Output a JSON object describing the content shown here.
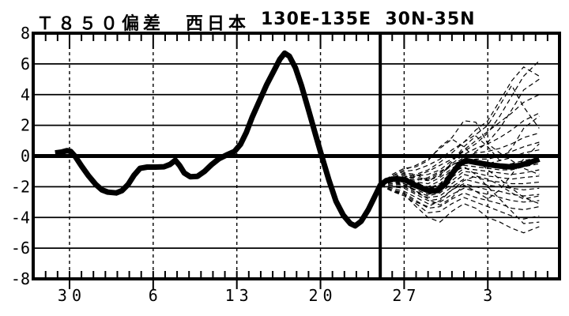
{
  "header": {
    "title_left": "Ｔ８５０偏差　西日本",
    "title_right": "130E-135E  30N-35N"
  },
  "chart_data": {
    "type": "line",
    "title": "Ｔ８５０偏差　西日本　130E-135E 30N-35N",
    "variable": "T850 anomaly (偏差)",
    "region": "西日本",
    "lon_band": "130E-135E",
    "lat_band": "30N-35N",
    "ylim": [
      -8,
      8
    ],
    "y_tick_values": [
      8,
      6,
      4,
      2,
      0,
      -2,
      -4,
      -6,
      -8
    ],
    "y_tick_labels": [
      "8",
      "6",
      "4",
      "2",
      "0",
      "-2",
      "-4",
      "-6",
      "-8"
    ],
    "x_tick_labels": [
      "30",
      "6",
      "13",
      "20",
      "27",
      "3"
    ],
    "x_tick_days": [
      0,
      7,
      14,
      21,
      28,
      35
    ],
    "day_range": [
      -3.04,
      41
    ],
    "forecast_start_day": 26,
    "grid": true,
    "legend": "none",
    "colors": {
      "fg": "#000000",
      "bg": "#ffffff"
    },
    "mean_series": {
      "name": "analysis-and-ensemble-mean",
      "points": [
        [
          -1.2,
          0.2
        ],
        [
          -0.7,
          0.25
        ],
        [
          -0.2,
          0.35
        ],
        [
          0.1,
          0.3
        ],
        [
          0.5,
          -0.05
        ],
        [
          1.0,
          -0.65
        ],
        [
          1.6,
          -1.3
        ],
        [
          2.2,
          -1.85
        ],
        [
          2.7,
          -2.2
        ],
        [
          3.2,
          -2.35
        ],
        [
          3.9,
          -2.4
        ],
        [
          4.4,
          -2.25
        ],
        [
          4.9,
          -1.85
        ],
        [
          5.4,
          -1.25
        ],
        [
          5.9,
          -0.8
        ],
        [
          6.5,
          -0.72
        ],
        [
          7.2,
          -0.72
        ],
        [
          7.9,
          -0.7
        ],
        [
          8.4,
          -0.55
        ],
        [
          8.85,
          -0.28
        ],
        [
          9.2,
          -0.6
        ],
        [
          9.6,
          -1.1
        ],
        [
          10.1,
          -1.35
        ],
        [
          10.7,
          -1.32
        ],
        [
          11.3,
          -1.0
        ],
        [
          11.9,
          -0.55
        ],
        [
          12.5,
          -0.18
        ],
        [
          13.1,
          0.05
        ],
        [
          13.8,
          0.3
        ],
        [
          14.3,
          0.75
        ],
        [
          14.8,
          1.55
        ],
        [
          15.3,
          2.55
        ],
        [
          15.9,
          3.6
        ],
        [
          16.5,
          4.65
        ],
        [
          17.1,
          5.55
        ],
        [
          17.6,
          6.3
        ],
        [
          18.0,
          6.7
        ],
        [
          18.4,
          6.5
        ],
        [
          18.9,
          5.75
        ],
        [
          19.4,
          4.6
        ],
        [
          20.0,
          3.0
        ],
        [
          20.6,
          1.35
        ],
        [
          21.1,
          0.0
        ],
        [
          21.7,
          -1.55
        ],
        [
          22.3,
          -2.95
        ],
        [
          22.9,
          -3.85
        ],
        [
          23.5,
          -4.4
        ],
        [
          23.9,
          -4.55
        ],
        [
          24.4,
          -4.25
        ],
        [
          25.0,
          -3.5
        ],
        [
          25.5,
          -2.7
        ],
        [
          26.0,
          -1.9
        ],
        [
          26.5,
          -1.6
        ],
        [
          27.0,
          -1.5
        ],
        [
          27.6,
          -1.5
        ],
        [
          28.2,
          -1.6
        ],
        [
          28.8,
          -1.85
        ],
        [
          29.5,
          -2.1
        ],
        [
          30.2,
          -2.3
        ],
        [
          30.8,
          -2.25
        ],
        [
          31.4,
          -1.85
        ],
        [
          32.0,
          -1.15
        ],
        [
          32.6,
          -0.55
        ],
        [
          33.2,
          -0.3
        ],
        [
          33.9,
          -0.4
        ],
        [
          34.6,
          -0.5
        ],
        [
          35.2,
          -0.58
        ],
        [
          36.0,
          -0.65
        ],
        [
          36.8,
          -0.7
        ],
        [
          37.6,
          -0.62
        ],
        [
          38.4,
          -0.45
        ],
        [
          39.0,
          -0.3
        ],
        [
          39.3,
          -0.2
        ]
      ]
    },
    "control_series": {
      "name": "control-member",
      "days": [
        26,
        27,
        28,
        29,
        30,
        31,
        32,
        33,
        34,
        35,
        36,
        37,
        38,
        39.3
      ],
      "values": [
        -1.9,
        -1.45,
        -1.55,
        -1.85,
        -2.15,
        -1.95,
        -1.1,
        -0.4,
        -0.35,
        -0.55,
        -0.75,
        -0.75,
        -0.55,
        -0.3
      ]
    },
    "ensemble": {
      "name": "ensemble-members",
      "days": [
        26,
        27,
        28,
        29,
        30,
        31,
        32,
        33,
        34,
        35,
        36,
        37,
        38,
        39.3
      ],
      "members": [
        [
          -1.9,
          -1.2,
          -0.8,
          -0.7,
          -0.3,
          0.6,
          1.2,
          2.3,
          2.2,
          0.8,
          0.2,
          -0.3,
          -0.8,
          -1.2
        ],
        [
          -1.9,
          -1.4,
          -1.2,
          -1.3,
          -1.0,
          -0.6,
          -0.2,
          0.3,
          0.8,
          1.5,
          2.6,
          3.9,
          5.2,
          6.2
        ],
        [
          -1.9,
          -1.5,
          -1.4,
          -1.6,
          -1.4,
          -1.0,
          -0.6,
          -0.2,
          0.3,
          0.9,
          1.8,
          3.0,
          4.3,
          5.0
        ],
        [
          -1.9,
          -1.3,
          -1.0,
          -0.9,
          -0.6,
          -0.2,
          0.4,
          0.9,
          1.4,
          2.0,
          3.3,
          4.6,
          3.2,
          1.8
        ],
        [
          -1.9,
          -1.6,
          -1.5,
          -1.3,
          -1.2,
          -0.9,
          -0.3,
          0.4,
          1.0,
          1.6,
          2.2,
          2.8,
          3.5,
          4.0
        ],
        [
          -1.9,
          -1.5,
          -1.3,
          -1.4,
          -1.5,
          -1.1,
          -0.5,
          0.1,
          0.5,
          0.8,
          1.2,
          1.7,
          2.3,
          2.8
        ],
        [
          -1.9,
          -1.4,
          -1.3,
          -1.5,
          -1.6,
          -1.2,
          -0.6,
          -0.1,
          0.2,
          0.3,
          0.5,
          0.8,
          1.2,
          1.5
        ],
        [
          -1.9,
          -1.5,
          -1.5,
          -1.7,
          -1.8,
          -1.4,
          -0.8,
          -0.3,
          -0.2,
          -0.2,
          0.0,
          0.3,
          0.6,
          0.9
        ],
        [
          -1.9,
          -1.6,
          -1.6,
          -1.8,
          -2.0,
          -1.6,
          -0.9,
          -0.4,
          -0.4,
          -0.5,
          -0.3,
          -0.1,
          0.2,
          0.4
        ],
        [
          -1.9,
          -1.5,
          -1.6,
          -1.9,
          -2.2,
          -1.8,
          -1.0,
          -0.5,
          -0.5,
          -0.6,
          -0.6,
          -0.5,
          -0.3,
          -0.1
        ],
        [
          -1.9,
          -1.6,
          -1.7,
          -2.0,
          -2.3,
          -2.0,
          -1.2,
          -0.6,
          -0.7,
          -0.8,
          -0.9,
          -0.9,
          -0.7,
          -0.5
        ],
        [
          -1.9,
          -1.7,
          -1.8,
          -2.1,
          -2.4,
          -2.1,
          -1.4,
          -0.8,
          -0.9,
          -1.0,
          -1.1,
          -1.2,
          -1.1,
          -0.9
        ],
        [
          -1.9,
          -1.8,
          -1.9,
          -2.2,
          -2.5,
          -2.3,
          -1.6,
          -1.0,
          -1.1,
          -1.3,
          -1.4,
          -1.5,
          -1.4,
          -1.3
        ],
        [
          -1.9,
          -1.6,
          -1.8,
          -2.3,
          -2.6,
          -2.4,
          -1.8,
          -1.2,
          -1.4,
          -1.6,
          -1.7,
          -1.8,
          -1.8,
          -1.7
        ],
        [
          -1.9,
          -1.9,
          -2.0,
          -2.4,
          -2.7,
          -2.6,
          -2.0,
          -1.5,
          -1.7,
          -1.9,
          -2.0,
          -2.1,
          -2.2,
          -2.1
        ],
        [
          -1.9,
          -2.0,
          -2.1,
          -2.5,
          -2.9,
          -2.8,
          -2.2,
          -1.8,
          -2.0,
          -2.2,
          -2.3,
          -2.5,
          -2.6,
          -2.5
        ],
        [
          -1.9,
          -2.1,
          -2.3,
          -2.7,
          -3.1,
          -3.0,
          -2.5,
          -2.1,
          -2.3,
          -2.5,
          -2.7,
          -2.9,
          -3.0,
          -2.9
        ],
        [
          -1.9,
          -2.2,
          -2.4,
          -2.9,
          -3.4,
          -3.3,
          -2.8,
          -2.4,
          -2.7,
          -2.9,
          -3.1,
          -3.4,
          -3.5,
          -3.3
        ],
        [
          -1.9,
          -2.3,
          -2.6,
          -3.1,
          -3.7,
          -3.6,
          -3.1,
          -2.7,
          -3.0,
          -3.3,
          -3.6,
          -3.9,
          -4.1,
          -3.9
        ],
        [
          -1.9,
          -2.3,
          -2.5,
          -3.3,
          -4.0,
          -4.3,
          -3.6,
          -3.1,
          -3.4,
          -4.0,
          -4.3,
          -4.7,
          -5.0,
          -4.6
        ],
        [
          -1.9,
          -2.2,
          -2.5,
          -3.0,
          -3.3,
          -2.9,
          -2.2,
          -1.6,
          -1.3,
          -1.5,
          -1.9,
          -2.4,
          -2.8,
          -2.6
        ],
        [
          -1.9,
          -1.3,
          -0.9,
          -0.6,
          -0.2,
          0.5,
          1.1,
          0.6,
          -0.2,
          -0.9,
          -1.5,
          -2.1,
          -2.7,
          -3.1
        ],
        [
          -1.9,
          -1.4,
          -1.1,
          -1.2,
          -1.6,
          -1.3,
          -0.4,
          0.6,
          1.3,
          0.6,
          -0.3,
          0.5,
          1.8,
          2.6
        ],
        [
          -1.9,
          -1.7,
          -1.9,
          -2.3,
          -2.8,
          -3.2,
          -2.7,
          -1.9,
          -2.3,
          -2.8,
          -2.2,
          -1.2,
          -0.2,
          0.8
        ],
        [
          -1.9,
          -1.5,
          -1.4,
          -1.7,
          -2.1,
          -1.8,
          -1.1,
          -0.7,
          -1.2,
          -2.0,
          -2.8,
          -3.6,
          -4.4,
          -4.3
        ],
        [
          -1.9,
          -1.6,
          -1.4,
          -1.2,
          -0.9,
          -0.4,
          0.2,
          0.9,
          1.7,
          2.3,
          3.6,
          4.9,
          5.8,
          5.2
        ]
      ]
    }
  }
}
